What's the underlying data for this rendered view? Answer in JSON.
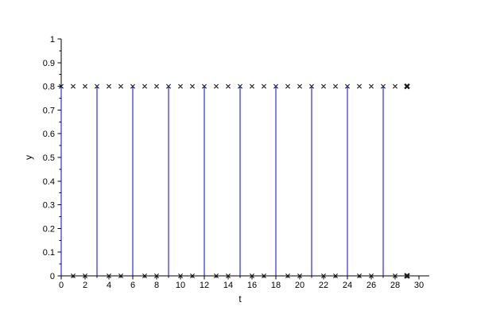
{
  "figure": {
    "background": "#ffffff",
    "axis_color": "#000000",
    "tick_label_font_px": 11,
    "axis_label_font_px": 12
  },
  "chart_data": {
    "type": "scatter+stem",
    "title": "",
    "xlabel": "t",
    "ylabel": "y",
    "xlim": [
      0,
      30
    ],
    "ylim": [
      0,
      1
    ],
    "grid": false,
    "legend": null,
    "x_major_ticks": [
      0,
      2,
      4,
      6,
      8,
      10,
      12,
      14,
      16,
      18,
      20,
      22,
      24,
      26,
      28,
      30
    ],
    "x_major_tick_labels": [
      "0",
      "2",
      "4",
      "6",
      "8",
      "10",
      "12",
      "14",
      "16",
      "18",
      "20",
      "22",
      "24",
      "26",
      "28",
      "30"
    ],
    "x_minor_ticks": [
      1,
      3,
      5,
      7,
      9,
      11,
      13,
      15,
      17,
      19,
      21,
      23,
      25,
      27,
      29
    ],
    "y_major_ticks": [
      0,
      0.1,
      0.2,
      0.3,
      0.4,
      0.5,
      0.6,
      0.7,
      0.8,
      0.9,
      1
    ],
    "y_major_tick_labels": [
      "0",
      "0.1",
      "0.2",
      "0.3",
      "0.4",
      "0.5",
      "0.6",
      "0.7",
      "0.8",
      "0.9",
      "1"
    ],
    "y_minor_ticks": [
      0.05,
      0.15,
      0.25,
      0.35,
      0.45,
      0.55,
      0.65,
      0.75,
      0.85,
      0.95
    ],
    "marker_color": "#1a1a1a",
    "stem_color": "#0000dd",
    "series": [
      {
        "name": "signal-samples-at-0p8",
        "type": "scatter",
        "marker": "x",
        "color": "#1a1a1a",
        "x": [
          0,
          1,
          2,
          3,
          4,
          5,
          6,
          7,
          8,
          9,
          10,
          11,
          12,
          13,
          14,
          15,
          16,
          17,
          18,
          19,
          20,
          21,
          22,
          23,
          24,
          25,
          26,
          27,
          28,
          29
        ],
        "y": [
          0.8,
          0.8,
          0.8,
          0.8,
          0.8,
          0.8,
          0.8,
          0.8,
          0.8,
          0.8,
          0.8,
          0.8,
          0.8,
          0.8,
          0.8,
          0.8,
          0.8,
          0.8,
          0.8,
          0.8,
          0.8,
          0.8,
          0.8,
          0.8,
          0.8,
          0.8,
          0.8,
          0.8,
          0.8,
          0.8
        ]
      },
      {
        "name": "impulse-train-stems",
        "type": "stem",
        "color": "#0000dd",
        "x": [
          0,
          3,
          6,
          9,
          12,
          15,
          18,
          21,
          24,
          27
        ],
        "y": [
          0.8,
          0.8,
          0.8,
          0.8,
          0.8,
          0.8,
          0.8,
          0.8,
          0.8,
          0.8
        ],
        "baseline": 0
      },
      {
        "name": "zero-samples",
        "type": "scatter",
        "marker": "x",
        "color": "#1a1a1a",
        "x": [
          1,
          2,
          4,
          5,
          7,
          8,
          10,
          11,
          13,
          14,
          16,
          17,
          19,
          20,
          22,
          23,
          25,
          26,
          28,
          29
        ],
        "y": [
          0,
          0,
          0,
          0,
          0,
          0,
          0,
          0,
          0,
          0,
          0,
          0,
          0,
          0,
          0,
          0,
          0,
          0,
          0,
          0
        ]
      }
    ],
    "emphasized_points": [
      {
        "x": 29,
        "y": 0.8
      },
      {
        "x": 29,
        "y": 0
      }
    ]
  }
}
